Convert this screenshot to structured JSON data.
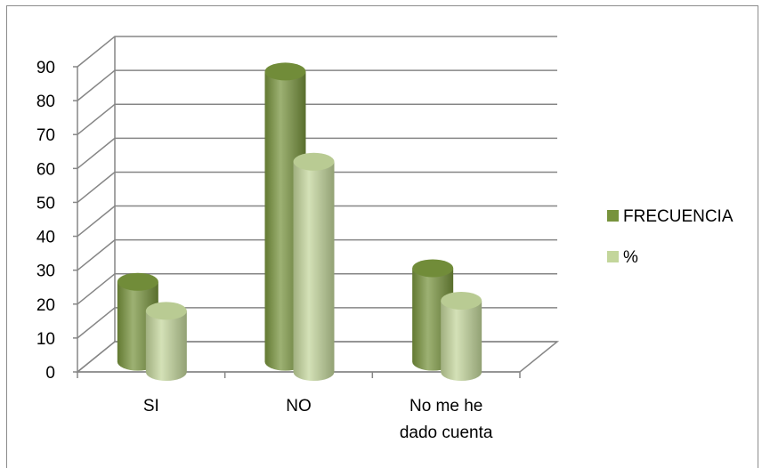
{
  "chart_data": {
    "type": "bar",
    "categories": [
      "SI",
      "NO",
      "No me he dado cuenta"
    ],
    "category_lines": [
      [
        "SI"
      ],
      [
        "NO"
      ],
      [
        "No me he",
        "dado cuenta"
      ]
    ],
    "series": [
      {
        "name": "FRECUENCIA",
        "values": [
          25,
          87,
          29
        ],
        "color": "#77933c"
      },
      {
        "name": "%",
        "values": [
          18,
          62,
          21
        ],
        "color": "#c3d69b"
      }
    ],
    "ylim": [
      0,
      90
    ],
    "yticks": [
      "0",
      "10",
      "20",
      "30",
      "40",
      "50",
      "60",
      "70",
      "80",
      "90"
    ],
    "grid": true,
    "legend": "right",
    "style": "3d-cylinder"
  }
}
